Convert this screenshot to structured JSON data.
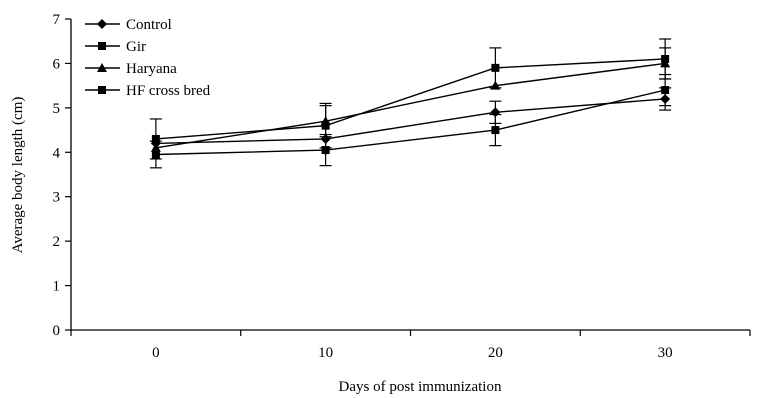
{
  "chart_data": {
    "type": "line",
    "title": "",
    "xlabel": "Days of post immunization",
    "ylabel": "Average body length (cm)",
    "x": [
      0,
      10,
      20,
      30
    ],
    "x_ticks": [
      "0",
      "10",
      "20",
      "30"
    ],
    "y_ticks": [
      "0",
      "1",
      "2",
      "3",
      "4",
      "5",
      "6",
      "7"
    ],
    "ylim": [
      0,
      7
    ],
    "grid": false,
    "legend_position": "top-left",
    "series": [
      {
        "name": "Control",
        "marker": "diamond",
        "values": [
          4.2,
          4.3,
          4.9,
          5.2
        ],
        "errors": [
          0.0,
          0.0,
          0.25,
          0.25
        ]
      },
      {
        "name": "Gir",
        "marker": "square",
        "values": [
          4.3,
          4.6,
          5.9,
          6.1
        ],
        "errors": [
          0.45,
          0.5,
          0.45,
          0.45
        ]
      },
      {
        "name": "Haryana",
        "marker": "triangle",
        "values": [
          4.1,
          4.7,
          5.5,
          6.0
        ],
        "errors": [
          0.0,
          0.35,
          0.0,
          0.35
        ]
      },
      {
        "name": "HF cross bred",
        "marker": "square",
        "values": [
          3.95,
          4.05,
          4.5,
          5.4
        ],
        "errors": [
          0.3,
          0.35,
          0.35,
          0.35
        ]
      }
    ]
  }
}
